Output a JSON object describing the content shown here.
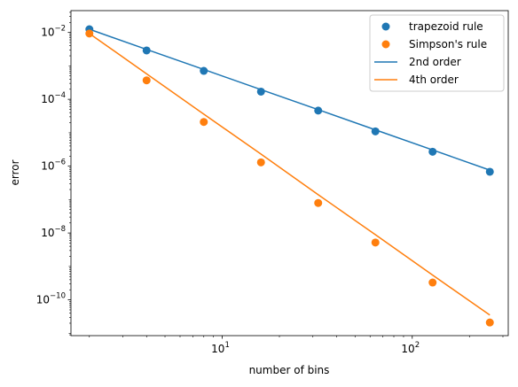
{
  "chart_data": {
    "type": "scatter",
    "title": "",
    "xlabel": "number of bins",
    "ylabel": "error",
    "xscale": "log",
    "yscale": "log",
    "xlim": [
      1.6,
      320
    ],
    "ylim": [
      8.5e-12,
      0.045
    ],
    "grid": false,
    "legend_position": "top-right",
    "x_ticks": [
      {
        "value": 10,
        "base": "10",
        "exp": "1"
      },
      {
        "value": 100,
        "base": "10",
        "exp": "2"
      }
    ],
    "y_ticks": [
      {
        "value": 1e-10,
        "base": "10",
        "exp": "−10"
      },
      {
        "value": 1e-08,
        "base": "10",
        "exp": "−8"
      },
      {
        "value": 1e-06,
        "base": "10",
        "exp": "−6"
      },
      {
        "value": 0.0001,
        "base": "10",
        "exp": "−4"
      },
      {
        "value": 0.01,
        "base": "10",
        "exp": "−2"
      }
    ],
    "x": [
      2,
      4,
      8,
      16,
      32,
      64,
      128,
      256
    ],
    "series": [
      {
        "name": "trapezoid rule",
        "kind": "scatter",
        "color": "#1f77b4",
        "values": [
          0.0125,
          0.0029,
          0.00071,
          0.00017,
          4.6e-05,
          1.1e-05,
          2.7e-06,
          6.8e-07
        ]
      },
      {
        "name": "Simpson's rule",
        "kind": "scatter",
        "color": "#ff7f0e",
        "values": [
          0.0093,
          0.00037,
          2.1e-05,
          1.3e-06,
          7.9e-08,
          5.2e-09,
          3.3e-10,
          2.1e-11
        ]
      },
      {
        "name": "2nd order",
        "kind": "line",
        "color": "#1f77b4",
        "values": [
          0.0125,
          0.0031,
          0.00078,
          0.000195,
          4.9e-05,
          1.22e-05,
          3.05e-06,
          7.6e-07
        ]
      },
      {
        "name": "4th order",
        "kind": "line",
        "color": "#ff7f0e",
        "values": [
          0.0093,
          0.00058,
          3.6e-05,
          2.3e-06,
          1.4e-07,
          8.9e-09,
          5.5e-10,
          3.5e-11
        ]
      }
    ]
  }
}
